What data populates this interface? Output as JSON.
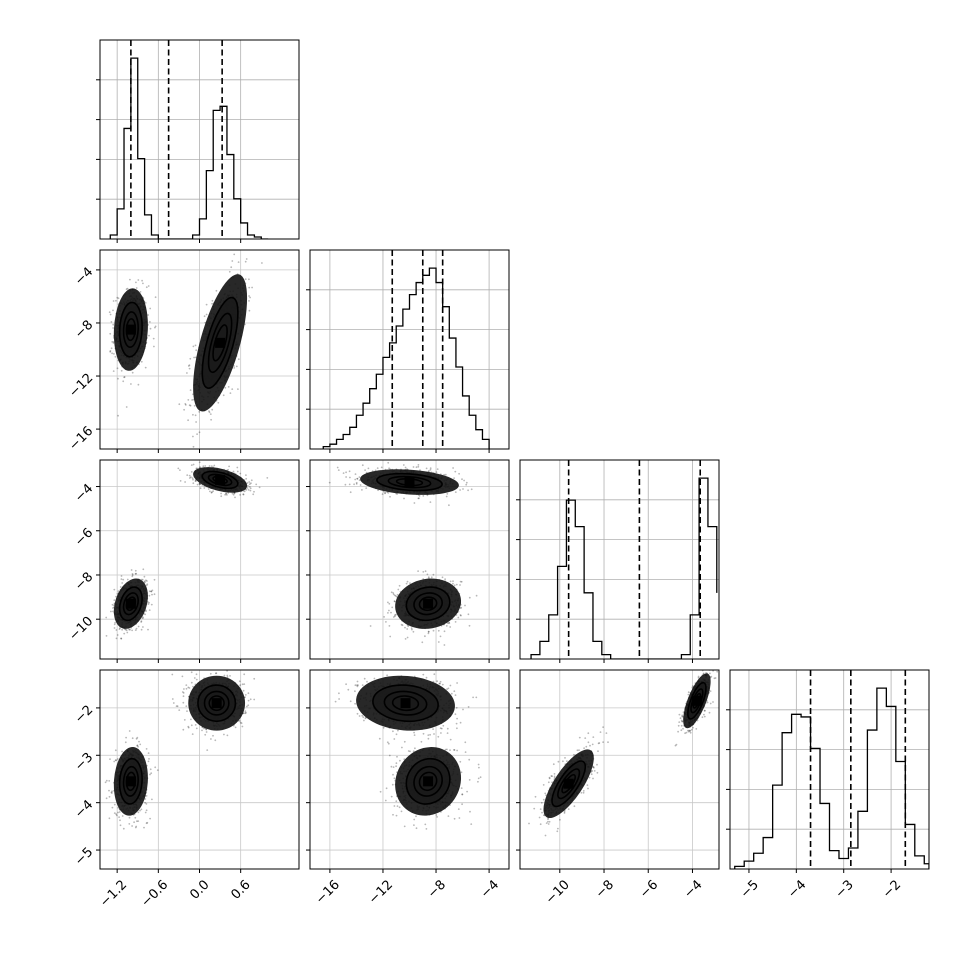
{
  "chart_data": {
    "type": "corner",
    "style": {
      "grid": true,
      "quantile_lines": "dashed",
      "contour_color": "#000000",
      "density_cmap": "greys"
    },
    "parameters": [
      {
        "range": [
          -1.45,
          1.45
        ],
        "ticks": [
          -1.2,
          -0.6,
          0.0,
          0.6
        ],
        "tick_labels": [
          "−1.2",
          "−0.6",
          "0.0",
          "0.6"
        ],
        "quantiles": [
          -1.0,
          -0.45,
          0.33
        ],
        "modes": [
          {
            "mean": -1.0,
            "sd": 0.12,
            "weight": 0.5
          },
          {
            "mean": 0.3,
            "sd": 0.19,
            "weight": 0.5
          }
        ]
      },
      {
        "range": [
          -17.5,
          -2.5
        ],
        "ticks": [
          -16,
          -12,
          -8,
          -4
        ],
        "tick_labels": [
          "−16",
          "−12",
          "−8",
          "−4"
        ],
        "quantiles": [
          -11.3,
          -9.0,
          -7.5
        ],
        "modes": [
          {
            "mean": -9.0,
            "sd": 1.8,
            "weight": 1.0
          }
        ]
      },
      {
        "range": [
          -11.8,
          -2.8
        ],
        "ticks": [
          -10,
          -8,
          -6,
          -4
        ],
        "tick_labels": [
          "−10",
          "−8",
          "−6",
          "−4"
        ],
        "quantiles": [
          -9.6,
          -6.4,
          -3.65
        ],
        "modes": [
          {
            "mean": -9.2,
            "sd": 0.55,
            "weight": 0.5
          },
          {
            "mean": -3.6,
            "sd": 0.3,
            "weight": 0.5
          }
        ]
      },
      {
        "range": [
          -5.4,
          -1.2
        ],
        "ticks": [
          -5,
          -4,
          -3,
          -2
        ],
        "tick_labels": [
          "−5",
          "−4",
          "−3",
          "−2"
        ],
        "quantiles": [
          -3.7,
          -2.85,
          -1.7
        ],
        "modes": [
          {
            "mean": -3.5,
            "sd": 0.35,
            "weight": 0.5
          },
          {
            "mean": -1.85,
            "sd": 0.28,
            "weight": 0.5
          }
        ]
      }
    ],
    "histograms": [
      {
        "param": 0,
        "bins": [
          -1.3,
          -1.2,
          -1.1,
          -1.0,
          -0.9,
          -0.8,
          -0.7,
          -0.6,
          -0.5,
          -0.4,
          -0.3,
          -0.2,
          -0.1,
          0.0,
          0.1,
          0.2,
          0.3,
          0.4,
          0.5,
          0.6,
          0.7,
          0.8,
          0.9,
          1.0
        ],
        "counts": [
          2,
          15,
          55,
          90,
          40,
          12,
          2,
          0,
          0,
          0,
          0,
          0,
          2,
          10,
          34,
          64,
          66,
          42,
          20,
          8,
          2,
          1,
          0
        ]
      },
      {
        "param": 1,
        "bins": [
          -16.5,
          -16,
          -15.5,
          -15,
          -14.5,
          -14,
          -13.5,
          -13,
          -12.5,
          -12,
          -11.5,
          -11,
          -10.5,
          -10,
          -9.5,
          -9,
          -8.5,
          -8,
          -7.5,
          -7,
          -6.5,
          -6,
          -5.5,
          -5,
          -4.5,
          -4
        ],
        "counts": [
          1,
          2,
          4,
          6,
          9,
          14,
          19,
          25,
          31,
          38,
          44,
          51,
          58,
          64,
          69,
          72,
          75,
          69,
          59,
          46,
          34,
          22,
          14,
          8,
          4
        ]
      },
      {
        "param": 2,
        "bins": [
          -11.3,
          -10.9,
          -10.5,
          -10.1,
          -9.7,
          -9.3,
          -8.9,
          -8.5,
          -8.1,
          -7.7,
          -7.3,
          -6.9,
          -6.5,
          -6.1,
          -5.7,
          -5.3,
          -4.9,
          -4.5,
          -4.1,
          -3.7,
          -3.3,
          -2.9
        ],
        "counts": [
          2,
          8,
          20,
          42,
          72,
          60,
          30,
          8,
          2,
          0,
          0,
          0,
          0,
          0,
          0,
          0,
          0,
          2,
          20,
          82,
          60,
          30
        ]
      },
      {
        "param": 3,
        "bins": [
          -5.3,
          -5.1,
          -4.9,
          -4.7,
          -4.5,
          -4.3,
          -4.1,
          -3.9,
          -3.7,
          -3.5,
          -3.3,
          -3.1,
          -2.9,
          -2.7,
          -2.5,
          -2.3,
          -2.1,
          -1.9,
          -1.7,
          -1.5,
          -1.3,
          -1.2
        ],
        "counts": [
          1,
          3,
          6,
          12,
          32,
          52,
          59,
          58,
          46,
          25,
          7,
          4,
          8,
          22,
          53,
          69,
          62,
          41,
          17,
          5,
          2
        ]
      }
    ],
    "scatter_pairs": [
      {
        "x_param": 0,
        "y_param": 1,
        "clusters": [
          {
            "cx": -1.0,
            "cy": -8.5,
            "sx": 0.12,
            "sy": 1.5,
            "rho": 0.1
          },
          {
            "cx": 0.3,
            "cy": -9.5,
            "sx": 0.19,
            "sy": 2.5,
            "rho": 0.65
          }
        ]
      },
      {
        "x_param": 0,
        "y_param": 2,
        "clusters": [
          {
            "cx": -1.0,
            "cy": -9.3,
            "sx": 0.12,
            "sy": 0.55,
            "rho": 0.3
          },
          {
            "cx": 0.3,
            "cy": -3.7,
            "sx": 0.19,
            "sy": 0.28,
            "rho": -0.45
          }
        ]
      },
      {
        "x_param": 1,
        "y_param": 2,
        "clusters": [
          {
            "cx": -10.0,
            "cy": -3.8,
            "sx": 1.8,
            "sy": 0.28,
            "rho": -0.25
          },
          {
            "cx": -8.6,
            "cy": -9.3,
            "sx": 1.2,
            "sy": 0.55,
            "rho": 0.1
          }
        ]
      },
      {
        "x_param": 0,
        "y_param": 3,
        "clusters": [
          {
            "cx": -1.0,
            "cy": -3.55,
            "sx": 0.12,
            "sy": 0.35,
            "rho": 0.1
          },
          {
            "cx": 0.25,
            "cy": -1.9,
            "sx": 0.2,
            "sy": 0.28,
            "rho": 0.0
          }
        ]
      },
      {
        "x_param": 1,
        "y_param": 3,
        "clusters": [
          {
            "cx": -10.3,
            "cy": -1.9,
            "sx": 1.8,
            "sy": 0.28,
            "rho": -0.1
          },
          {
            "cx": -8.6,
            "cy": -3.55,
            "sx": 1.2,
            "sy": 0.35,
            "rho": 0.1
          }
        ]
      },
      {
        "x_param": 2,
        "y_param": 3,
        "clusters": [
          {
            "cx": -9.6,
            "cy": -3.6,
            "sx": 0.55,
            "sy": 0.35,
            "rho": 0.75
          },
          {
            "cx": -3.8,
            "cy": -1.85,
            "sx": 0.3,
            "sy": 0.28,
            "rho": 0.7
          }
        ]
      }
    ]
  }
}
